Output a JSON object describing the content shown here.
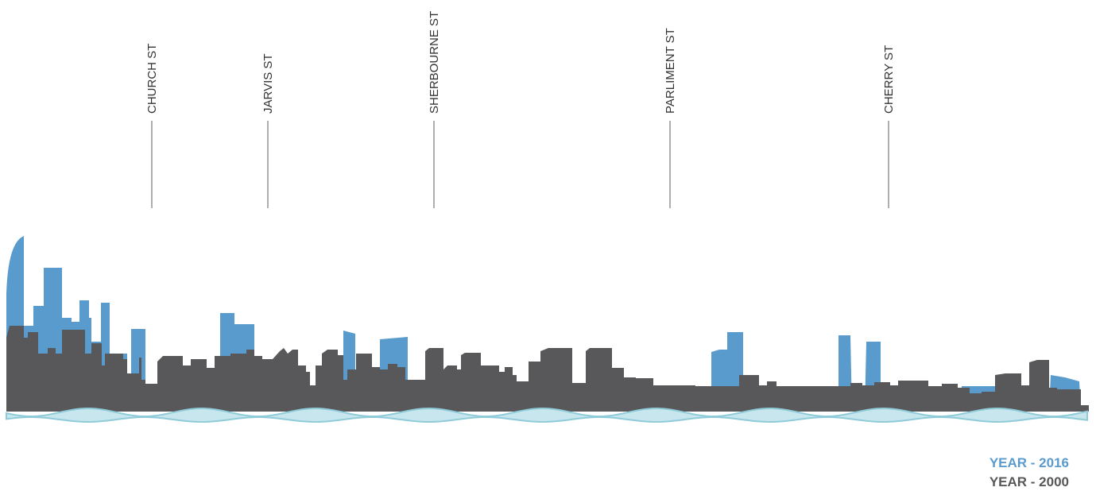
{
  "streets": [
    {
      "label": "CHURCH ST"
    },
    {
      "label": "JARVIS ST"
    },
    {
      "label": "SHERBOURNE ST"
    },
    {
      "label": "PARLIMENT ST"
    },
    {
      "label": "CHERRY ST"
    }
  ],
  "legend": {
    "items": [
      {
        "label": "YEAR - 2016"
      },
      {
        "label": "YEAR - 2000"
      }
    ]
  }
}
